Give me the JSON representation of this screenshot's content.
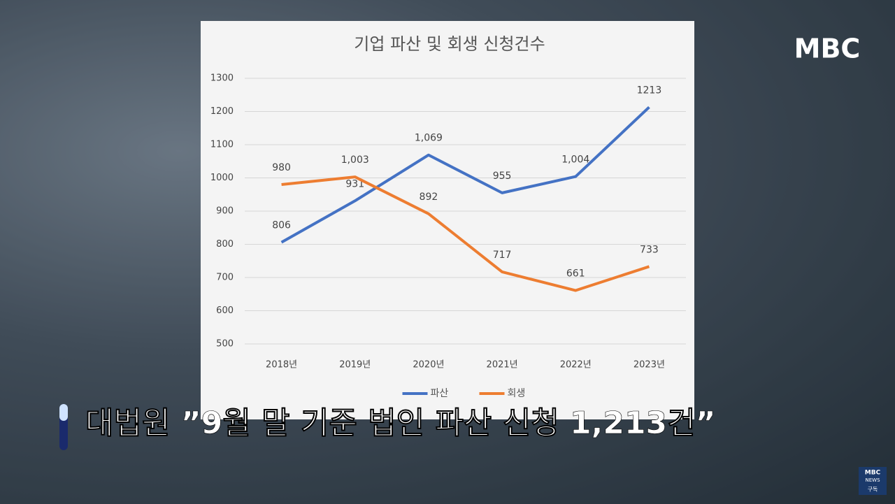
{
  "chart_data": {
    "type": "line",
    "title": "기업 파산 및 회생 신청건수",
    "categories": [
      "2018년",
      "2019년",
      "2020년",
      "2021년",
      "2022년",
      "2023년"
    ],
    "series": [
      {
        "name": "파산",
        "color": "#4472c4",
        "values": [
          806,
          931,
          1069,
          955,
          1004,
          1213
        ],
        "value_labels": [
          "806",
          "931",
          "1,069",
          "955",
          "1,004",
          "1213"
        ]
      },
      {
        "name": "회생",
        "color": "#ed7d31",
        "values": [
          980,
          1003,
          892,
          717,
          661,
          733
        ],
        "value_labels": [
          "980",
          "1,003",
          "892",
          "717",
          "661",
          "733"
        ]
      }
    ],
    "ylim": [
      500,
      1300
    ],
    "yticks": [
      500,
      600,
      700,
      800,
      900,
      1000,
      1100,
      1200,
      1300
    ],
    "grid": true,
    "legend": "bottom"
  },
  "caption": "대법원 ”9월 말 기준 법인 파산 신청 1,213건”",
  "logo": "MBC",
  "badge": {
    "top": "MBC",
    "middle": "NEWS",
    "bottom": "구독"
  }
}
